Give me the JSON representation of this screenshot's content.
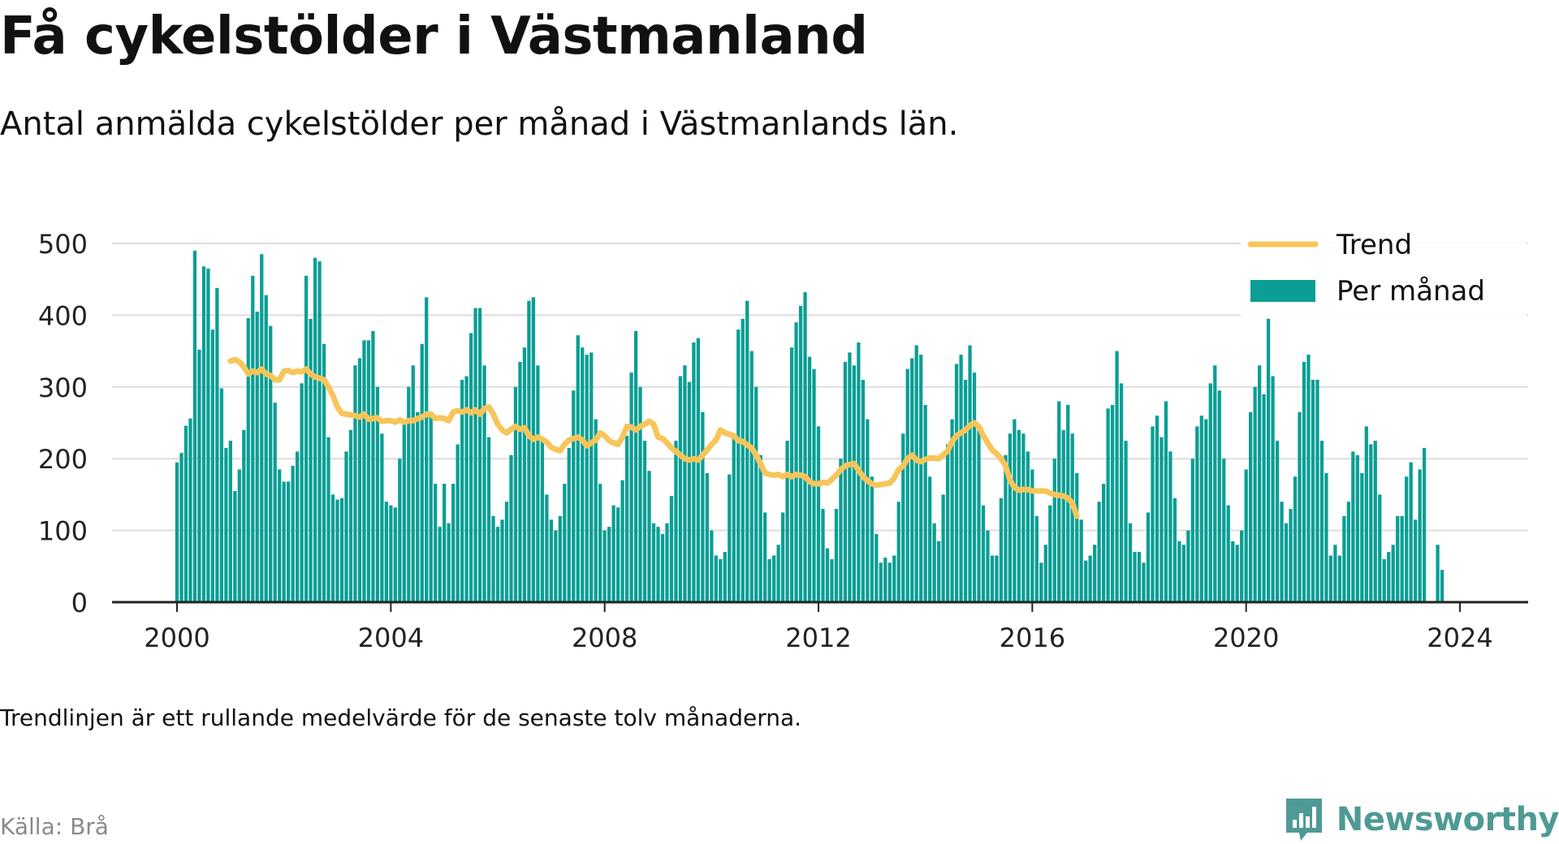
{
  "header": {
    "title": "Få cykelstölder i Västmanland",
    "subtitle": "Antal anmälda cykelstölder per månad i Västmanlands län."
  },
  "footer": {
    "note": "Trendlinjen är ett rullande medelvärde för de senaste tolv månaderna.",
    "source": "Källa: Brå",
    "brand": "Newsworthy"
  },
  "colors": {
    "bars": "#0a9e94",
    "trend": "#f7c55a",
    "grid": "#dddddd",
    "axis": "#222222",
    "brand": "#4f9a94"
  },
  "chart_data": {
    "type": "bar",
    "x_start": "2000-01",
    "x_ticks": [
      "2000",
      "2004",
      "2008",
      "2012",
      "2016",
      "2020",
      "2024"
    ],
    "y_ticks": [
      "0",
      "100",
      "200",
      "300",
      "400",
      "500"
    ],
    "ylim": [
      0,
      500
    ],
    "grid": true,
    "legend_position": "top-right",
    "series": [
      {
        "name": "Per månad",
        "type": "bar",
        "values": [
          195,
          208,
          246,
          256,
          490,
          352,
          468,
          465,
          380,
          438,
          298,
          215,
          225,
          155,
          185,
          240,
          396,
          455,
          405,
          485,
          428,
          385,
          278,
          185,
          168,
          168,
          190,
          210,
          305,
          455,
          395,
          480,
          475,
          360,
          230,
          150,
          143,
          145,
          210,
          240,
          330,
          340,
          365,
          365,
          378,
          300,
          235,
          140,
          135,
          132,
          200,
          250,
          300,
          330,
          265,
          360,
          425,
          265,
          165,
          105,
          165,
          110,
          165,
          220,
          310,
          315,
          375,
          410,
          410,
          330,
          230,
          120,
          105,
          115,
          140,
          205,
          300,
          335,
          355,
          420,
          425,
          330,
          230,
          150,
          115,
          100,
          120,
          165,
          215,
          295,
          372,
          355,
          345,
          348,
          255,
          165,
          100,
          105,
          135,
          132,
          170,
          232,
          320,
          378,
          300,
          225,
          183,
          110,
          105,
          95,
          110,
          148,
          225,
          315,
          330,
          307,
          362,
          368,
          265,
          180,
          100,
          65,
          60,
          70,
          178,
          235,
          380,
          395,
          420,
          350,
          300,
          205,
          125,
          60,
          65,
          80,
          125,
          225,
          355,
          390,
          413,
          432,
          342,
          325,
          245,
          130,
          75,
          60,
          130,
          200,
          335,
          348,
          330,
          362,
          310,
          255,
          175,
          95,
          55,
          62,
          55,
          65,
          140,
          235,
          325,
          340,
          358,
          345,
          275,
          175,
          110,
          85,
          150,
          220,
          255,
          332,
          345,
          310,
          358,
          320,
          240,
          135,
          100,
          65,
          65,
          145,
          205,
          235,
          255,
          240,
          235,
          210,
          185,
          120,
          55,
          80,
          135,
          200,
          280,
          240,
          275,
          235,
          180,
          115,
          58,
          65,
          80,
          140,
          165,
          270,
          275,
          350,
          305,
          225,
          110,
          70,
          70,
          55,
          125,
          245,
          260,
          230,
          280,
          210,
          145,
          85,
          80,
          100,
          200,
          245,
          260,
          255,
          305,
          330,
          295,
          200,
          135,
          85,
          80,
          100,
          185,
          265,
          300,
          330,
          290,
          395,
          315,
          225,
          140,
          110,
          130,
          175,
          265,
          335,
          345,
          310,
          310,
          225,
          180,
          65,
          80,
          65,
          120,
          140,
          210,
          205,
          180,
          245,
          220,
          225,
          150,
          60,
          70,
          80,
          120,
          120,
          175,
          195,
          115,
          185,
          215,
          0,
          0,
          80,
          45
        ]
      },
      {
        "name": "Trend",
        "type": "line",
        "start_index": 12,
        "values": [
          336,
          338,
          335,
          328,
          318,
          322,
          320,
          325,
          318,
          316,
          310,
          310,
          322,
          323,
          320,
          322,
          321,
          325,
          318,
          314,
          312,
          310,
          300,
          288,
          272,
          263,
          262,
          261,
          260,
          258,
          262,
          255,
          256,
          257,
          252,
          253,
          253,
          251,
          254,
          251,
          253,
          253,
          256,
          258,
          262,
          262,
          256,
          257,
          256,
          253,
          265,
          267,
          265,
          268,
          264,
          268,
          262,
          270,
          272,
          262,
          248,
          240,
          236,
          241,
          245,
          241,
          243,
          232,
          227,
          230,
          227,
          223,
          216,
          213,
          211,
          220,
          226,
          228,
          230,
          226,
          218,
          222,
          226,
          236,
          232,
          225,
          222,
          220,
          230,
          245,
          244,
          240,
          245,
          248,
          252,
          248,
          230,
          228,
          222,
          215,
          210,
          205,
          200,
          198,
          200,
          198,
          205,
          212,
          220,
          226,
          240,
          236,
          234,
          232,
          225,
          224,
          219,
          215,
          205,
          193,
          180,
          178,
          177,
          178,
          175,
          178,
          175,
          178,
          177,
          175,
          168,
          165,
          165,
          167,
          166,
          171,
          177,
          185,
          190,
          192,
          193,
          184,
          175,
          169,
          165,
          163,
          164,
          165,
          166,
          173,
          185,
          190,
          200,
          205,
          198,
          196,
          199,
          201,
          201,
          200,
          205,
          211,
          224,
          232,
          236,
          240,
          246,
          250,
          245,
          232,
          222,
          212,
          207,
          200,
          190,
          170,
          160,
          156,
          157,
          157,
          155,
          155,
          155,
          155,
          152,
          150,
          149,
          148,
          145,
          138,
          120
        ]
      }
    ]
  }
}
